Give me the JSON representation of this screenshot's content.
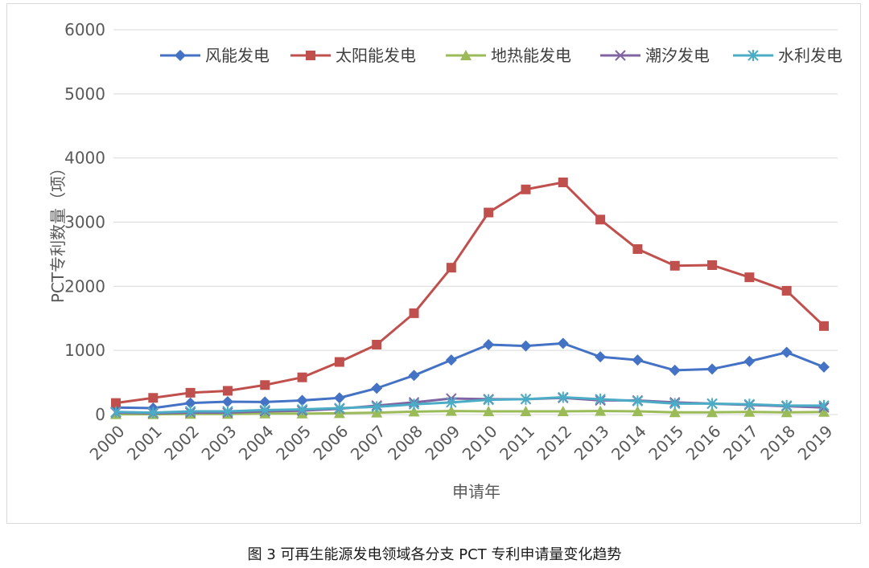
{
  "chart_data": {
    "type": "line",
    "title": "",
    "xlabel": "申请年",
    "ylabel": "PCT专利数量（项）",
    "ylim": [
      0,
      6000
    ],
    "yticks": [
      0,
      1000,
      2000,
      3000,
      4000,
      5000,
      6000
    ],
    "grid": true,
    "legend_position": "top",
    "categories": [
      "2000",
      "2001",
      "2002",
      "2003",
      "2004",
      "2005",
      "2006",
      "2007",
      "2008",
      "2009",
      "2010",
      "2011",
      "2012",
      "2013",
      "2014",
      "2015",
      "2016",
      "2017",
      "2018",
      "2019"
    ],
    "series": [
      {
        "name": "风能发电",
        "color": "#4472C4",
        "marker": "diamond",
        "values": [
          110,
          100,
          180,
          200,
          195,
          220,
          260,
          410,
          610,
          850,
          1090,
          1070,
          1110,
          900,
          850,
          690,
          710,
          830,
          970,
          740
        ]
      },
      {
        "name": "太阳能发电",
        "color": "#C0504D",
        "marker": "square",
        "values": [
          180,
          260,
          340,
          370,
          460,
          580,
          820,
          1090,
          1580,
          2290,
          3150,
          3510,
          3620,
          3040,
          2580,
          2320,
          2330,
          2140,
          1930,
          1380
        ]
      },
      {
        "name": "地热能发电",
        "color": "#9BBB59",
        "marker": "triangle",
        "values": [
          5,
          5,
          10,
          10,
          15,
          15,
          20,
          30,
          45,
          55,
          50,
          50,
          50,
          55,
          50,
          35,
          35,
          40,
          35,
          40
        ]
      },
      {
        "name": "潮汐发电",
        "color": "#8064A2",
        "marker": "x",
        "values": [
          30,
          20,
          30,
          30,
          50,
          60,
          90,
          140,
          190,
          250,
          240,
          240,
          260,
          220,
          220,
          190,
          170,
          150,
          130,
          110
        ]
      },
      {
        "name": "水利发电",
        "color": "#4BACC6",
        "marker": "asterisk",
        "values": [
          40,
          30,
          50,
          50,
          70,
          80,
          100,
          120,
          160,
          190,
          230,
          240,
          270,
          240,
          210,
          170,
          170,
          160,
          140,
          140
        ]
      }
    ]
  },
  "caption": "图 3  可再生能源发电领域各分支 PCT 专利申请量变化趋势"
}
